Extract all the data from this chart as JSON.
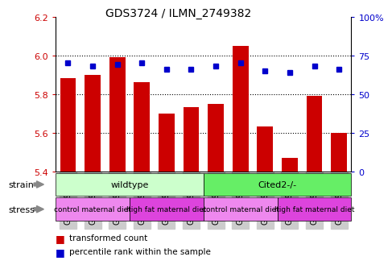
{
  "title": "GDS3724 / ILMN_2749382",
  "samples": [
    "GSM559820",
    "GSM559825",
    "GSM559826",
    "GSM559819",
    "GSM559821",
    "GSM559827",
    "GSM559816",
    "GSM559822",
    "GSM559824",
    "GSM559817",
    "GSM559818",
    "GSM559823"
  ],
  "transformed_counts": [
    5.88,
    5.9,
    5.99,
    5.86,
    5.7,
    5.73,
    5.75,
    6.05,
    5.63,
    5.47,
    5.79,
    5.6
  ],
  "percentile_ranks": [
    70,
    68,
    69,
    70,
    66,
    66,
    68,
    70,
    65,
    64,
    68,
    66
  ],
  "bar_color": "#cc0000",
  "dot_color": "#0000cc",
  "ylim_left": [
    5.4,
    6.2
  ],
  "ylim_right": [
    0,
    100
  ],
  "yticks_left": [
    5.4,
    5.6,
    5.8,
    6.0,
    6.2
  ],
  "yticks_right": [
    0,
    25,
    50,
    75,
    100
  ],
  "ytick_labels_right": [
    "0",
    "25",
    "50",
    "75",
    "100%"
  ],
  "grid_lines": [
    5.6,
    5.8,
    6.0
  ],
  "strain_labels": [
    "wildtype",
    "Cited2-/-"
  ],
  "strain_ranges": [
    [
      0,
      6
    ],
    [
      6,
      12
    ]
  ],
  "strain_colors": [
    "#ccffcc",
    "#66ee66"
  ],
  "stress_labels": [
    "control maternal diet",
    "high fat maternal diet",
    "control maternal diet",
    "high fat maternal diet"
  ],
  "stress_ranges": [
    [
      0,
      3
    ],
    [
      3,
      6
    ],
    [
      6,
      9
    ],
    [
      9,
      12
    ]
  ],
  "stress_colors": [
    "#ee88ee",
    "#dd44dd",
    "#ee88ee",
    "#dd44dd"
  ],
  "legend_bar_label": "transformed count",
  "legend_dot_label": "percentile rank within the sample",
  "left_tick_color": "#cc0000",
  "right_tick_color": "#0000cc",
  "xtick_bg_color": "#cccccc",
  "fig_bg_color": "#ffffff",
  "plot_bg_color": "#ffffff"
}
